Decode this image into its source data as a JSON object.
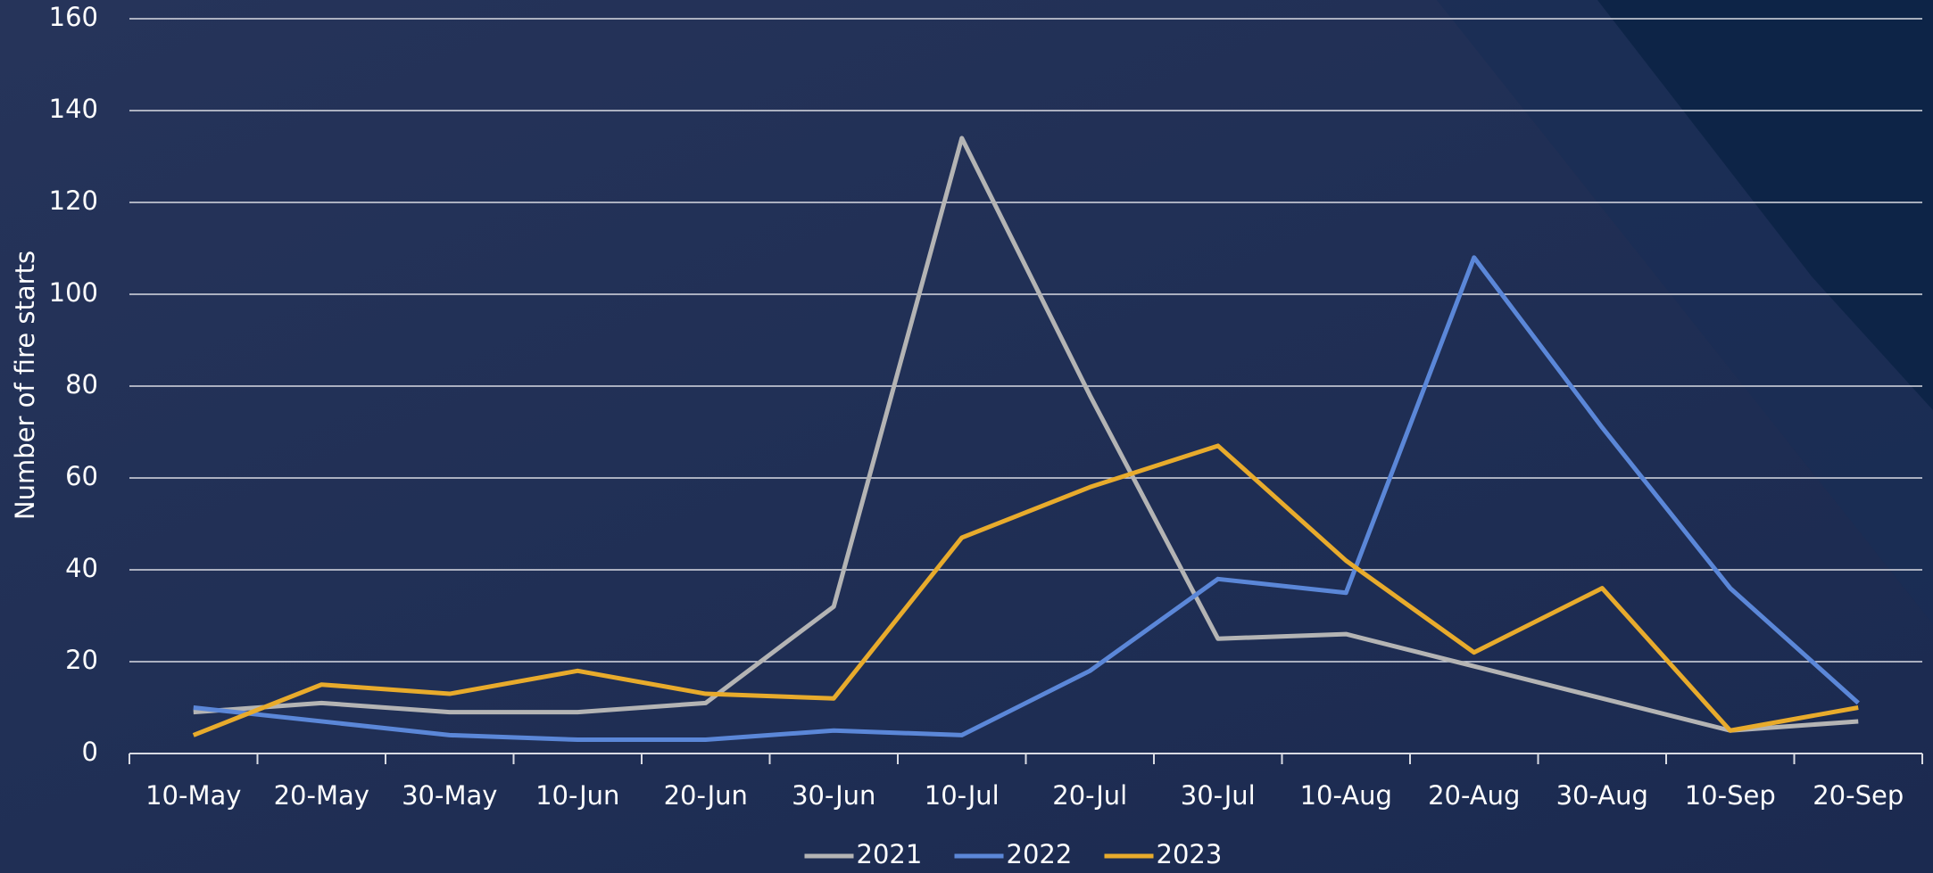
{
  "chart_data": {
    "type": "line",
    "y_label": "Number of fire starts",
    "categories": [
      "10-May",
      "20-May",
      "30-May",
      "10-Jun",
      "20-Jun",
      "30-Jun",
      "10-Jul",
      "20-Jul",
      "30-Jul",
      "10-Aug",
      "20-Aug",
      "30-Aug",
      "10-Sep",
      "20-Sep"
    ],
    "series": [
      {
        "name": "2021",
        "color": "#b4b4b4",
        "values": [
          9,
          11,
          9,
          9,
          11,
          32,
          134,
          78,
          25,
          26,
          19,
          12,
          5,
          7
        ]
      },
      {
        "name": "2022",
        "color": "#5b87d8",
        "values": [
          10,
          7,
          4,
          3,
          3,
          5,
          4,
          18,
          38,
          35,
          108,
          71,
          36,
          11
        ]
      },
      {
        "name": "2023",
        "color": "#e8ab2c",
        "values": [
          4,
          15,
          13,
          18,
          13,
          12,
          47,
          58,
          67,
          42,
          22,
          36,
          5,
          10
        ]
      }
    ],
    "ylim": [
      0,
      160
    ],
    "yticks": [
      0,
      20,
      40,
      60,
      80,
      100,
      120,
      140,
      160
    ],
    "grid": true,
    "legend": "bottom"
  }
}
